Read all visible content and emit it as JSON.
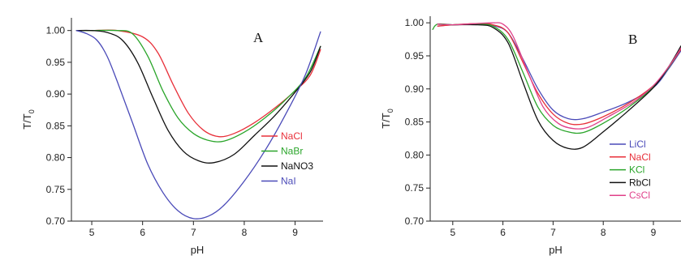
{
  "chart_data": [
    {
      "type": "line",
      "panel_label": "A",
      "xlabel": "pH",
      "ylabel": "T/T",
      "ylabel_sub": "0",
      "xlim": [
        4.6,
        9.55
      ],
      "ylim": [
        0.7,
        1.02
      ],
      "xticks": [
        5,
        6,
        7,
        8,
        9
      ],
      "yticks": [
        "0.70",
        "0.75",
        "0.80",
        "0.85",
        "0.90",
        "0.95",
        "1.00"
      ],
      "legend_position": "bottom-right",
      "series": [
        {
          "name": "NaCl",
          "color": "#e8303a",
          "points": [
            [
              4.7,
              1.0
            ],
            [
              5.0,
              1.0
            ],
            [
              5.5,
              1.0
            ],
            [
              6.0,
              0.99
            ],
            [
              6.3,
              0.965
            ],
            [
              6.6,
              0.915
            ],
            [
              6.9,
              0.87
            ],
            [
              7.2,
              0.843
            ],
            [
              7.5,
              0.833
            ],
            [
              7.8,
              0.838
            ],
            [
              8.2,
              0.855
            ],
            [
              8.6,
              0.878
            ],
            [
              9.0,
              0.905
            ],
            [
              9.3,
              0.93
            ],
            [
              9.5,
              0.97
            ]
          ]
        },
        {
          "name": "NaBr",
          "color": "#2aa52a",
          "points": [
            [
              4.7,
              1.0
            ],
            [
              5.0,
              1.0
            ],
            [
              5.5,
              1.0
            ],
            [
              5.8,
              0.995
            ],
            [
              6.1,
              0.96
            ],
            [
              6.4,
              0.905
            ],
            [
              6.7,
              0.862
            ],
            [
              7.0,
              0.838
            ],
            [
              7.3,
              0.827
            ],
            [
              7.6,
              0.826
            ],
            [
              8.0,
              0.84
            ],
            [
              8.4,
              0.862
            ],
            [
              8.8,
              0.89
            ],
            [
              9.2,
              0.925
            ],
            [
              9.5,
              0.975
            ]
          ]
        },
        {
          "name": "NaNO3",
          "color": "#111111",
          "points": [
            [
              4.7,
              1.0
            ],
            [
              5.0,
              1.0
            ],
            [
              5.3,
              0.997
            ],
            [
              5.6,
              0.985
            ],
            [
              5.9,
              0.95
            ],
            [
              6.2,
              0.895
            ],
            [
              6.5,
              0.843
            ],
            [
              6.8,
              0.81
            ],
            [
              7.1,
              0.795
            ],
            [
              7.4,
              0.792
            ],
            [
              7.8,
              0.805
            ],
            [
              8.2,
              0.835
            ],
            [
              8.6,
              0.866
            ],
            [
              9.0,
              0.903
            ],
            [
              9.3,
              0.935
            ],
            [
              9.5,
              0.975
            ]
          ]
        },
        {
          "name": "NaI",
          "color": "#4a4ab8",
          "points": [
            [
              4.7,
              1.0
            ],
            [
              4.9,
              0.995
            ],
            [
              5.1,
              0.985
            ],
            [
              5.3,
              0.96
            ],
            [
              5.5,
              0.92
            ],
            [
              5.8,
              0.855
            ],
            [
              6.1,
              0.79
            ],
            [
              6.4,
              0.745
            ],
            [
              6.7,
              0.716
            ],
            [
              7.0,
              0.704
            ],
            [
              7.3,
              0.708
            ],
            [
              7.6,
              0.725
            ],
            [
              8.0,
              0.763
            ],
            [
              8.4,
              0.81
            ],
            [
              8.8,
              0.866
            ],
            [
              9.2,
              0.93
            ],
            [
              9.5,
              0.998
            ]
          ]
        }
      ]
    },
    {
      "type": "line",
      "panel_label": "B",
      "xlabel": "pH",
      "ylabel": "T/T",
      "ylabel_sub": "0",
      "xlim": [
        4.55,
        9.55
      ],
      "ylim": [
        0.7,
        1.01
      ],
      "xticks": [
        5,
        6,
        7,
        8,
        9
      ],
      "yticks": [
        "0.70",
        "0.75",
        "0.80",
        "0.85",
        "0.90",
        "0.95",
        "1.00"
      ],
      "legend_position": "bottom-right",
      "series": [
        {
          "name": "LiCl",
          "color": "#4a4ab8",
          "points": [
            [
              4.7,
              0.995
            ],
            [
              5.0,
              0.997
            ],
            [
              5.5,
              0.998
            ],
            [
              5.8,
              0.996
            ],
            [
              6.1,
              0.985
            ],
            [
              6.4,
              0.945
            ],
            [
              6.7,
              0.9
            ],
            [
              7.0,
              0.868
            ],
            [
              7.3,
              0.855
            ],
            [
              7.6,
              0.855
            ],
            [
              8.0,
              0.865
            ],
            [
              8.5,
              0.88
            ],
            [
              9.0,
              0.902
            ],
            [
              9.3,
              0.93
            ],
            [
              9.55,
              0.958
            ]
          ]
        },
        {
          "name": "NaCl",
          "color": "#e8303a",
          "points": [
            [
              4.7,
              0.995
            ],
            [
              5.0,
              0.997
            ],
            [
              5.5,
              0.999
            ],
            [
              5.8,
              0.997
            ],
            [
              6.1,
              0.985
            ],
            [
              6.4,
              0.94
            ],
            [
              6.7,
              0.893
            ],
            [
              7.0,
              0.862
            ],
            [
              7.3,
              0.848
            ],
            [
              7.6,
              0.847
            ],
            [
              8.0,
              0.858
            ],
            [
              8.5,
              0.878
            ],
            [
              9.0,
              0.905
            ],
            [
              9.3,
              0.932
            ],
            [
              9.55,
              0.96
            ]
          ]
        },
        {
          "name": "KCl",
          "color": "#2aa52a",
          "points": [
            [
              4.6,
              0.99
            ],
            [
              4.7,
              0.998
            ],
            [
              5.0,
              0.997
            ],
            [
              5.5,
              0.998
            ],
            [
              5.8,
              0.995
            ],
            [
              6.1,
              0.975
            ],
            [
              6.4,
              0.925
            ],
            [
              6.7,
              0.872
            ],
            [
              7.0,
              0.845
            ],
            [
              7.3,
              0.835
            ],
            [
              7.6,
              0.834
            ],
            [
              8.0,
              0.848
            ],
            [
              8.5,
              0.872
            ],
            [
              9.0,
              0.903
            ],
            [
              9.3,
              0.932
            ],
            [
              9.55,
              0.962
            ]
          ]
        },
        {
          "name": "RbCl",
          "color": "#111111",
          "points": [
            [
              4.7,
              0.998
            ],
            [
              5.0,
              0.997
            ],
            [
              5.5,
              0.997
            ],
            [
              5.8,
              0.993
            ],
            [
              6.1,
              0.97
            ],
            [
              6.4,
              0.91
            ],
            [
              6.7,
              0.852
            ],
            [
              7.0,
              0.822
            ],
            [
              7.3,
              0.81
            ],
            [
              7.6,
              0.812
            ],
            [
              8.0,
              0.835
            ],
            [
              8.5,
              0.867
            ],
            [
              9.0,
              0.902
            ],
            [
              9.3,
              0.933
            ],
            [
              9.55,
              0.965
            ]
          ]
        },
        {
          "name": "CsCl",
          "color": "#e0408a",
          "points": [
            [
              4.7,
              0.998
            ],
            [
              5.0,
              0.997
            ],
            [
              5.5,
              0.999
            ],
            [
              5.8,
              1.0
            ],
            [
              6.0,
              0.998
            ],
            [
              6.2,
              0.98
            ],
            [
              6.5,
              0.925
            ],
            [
              6.8,
              0.873
            ],
            [
              7.1,
              0.848
            ],
            [
              7.4,
              0.84
            ],
            [
              7.7,
              0.842
            ],
            [
              8.1,
              0.858
            ],
            [
              8.6,
              0.88
            ],
            [
              9.0,
              0.905
            ],
            [
              9.3,
              0.933
            ],
            [
              9.55,
              0.962
            ]
          ]
        }
      ]
    }
  ]
}
